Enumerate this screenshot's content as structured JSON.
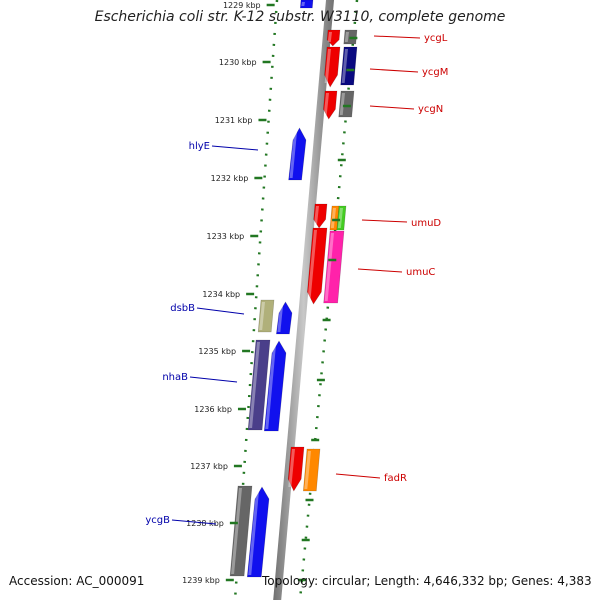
{
  "title": "Escherichia coli str. K-12 substr. W3110, complete genome",
  "footer": {
    "accession": "Accession: AC_000091",
    "summary": "Topology: circular; Length: 4,646,332 bp; Genes: 4,383"
  },
  "colors": {
    "forward_label": "#0000aa",
    "reverse_label": "#cc0000",
    "tick": "#227722",
    "backbone": "#8a8a8a"
  },
  "ticks": [
    {
      "label": "1229 kbp"
    },
    {
      "label": "1230 kbp"
    },
    {
      "label": "1231 kbp"
    },
    {
      "label": "1232 kbp"
    },
    {
      "label": "1233 kbp"
    },
    {
      "label": "1234 kbp"
    },
    {
      "label": "1235 kbp"
    },
    {
      "label": "1236 kbp"
    },
    {
      "label": "1237 kbp"
    },
    {
      "label": "1238 kbp"
    },
    {
      "label": "1239 kbp"
    }
  ],
  "labels": [
    {
      "text": "ycgL",
      "strand": "reverse"
    },
    {
      "text": "ycgM",
      "strand": "reverse"
    },
    {
      "text": "ycgN",
      "strand": "reverse"
    },
    {
      "text": "hlyE",
      "strand": "forward"
    },
    {
      "text": "umuD",
      "strand": "reverse"
    },
    {
      "text": "umuC",
      "strand": "reverse"
    },
    {
      "text": "dsbB",
      "strand": "forward"
    },
    {
      "text": "nhaB",
      "strand": "forward"
    },
    {
      "text": "fadR",
      "strand": "reverse"
    },
    {
      "text": "ycgB",
      "strand": "forward"
    }
  ]
}
